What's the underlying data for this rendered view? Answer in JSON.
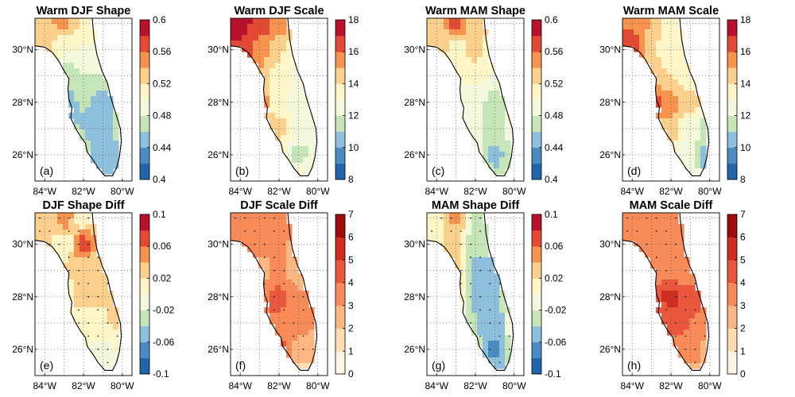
{
  "chart_data": [
    {
      "type": "heatmap",
      "panel_label": "(a)",
      "title": "Warm DJF Shape",
      "x_ticks": [
        "84°W",
        "82°W",
        "80°W"
      ],
      "y_ticks": [
        "30°N",
        "28°N",
        "26°N"
      ],
      "colorbar": {
        "min": 0.4,
        "max": 0.6,
        "ticks": [
          "0.6",
          "0.56",
          "0.52",
          "0.48",
          "0.44",
          "0.4"
        ],
        "palette": "diverging_rdylbu",
        "levels": 10
      },
      "field": {
        "lon": [
          -84,
          -83,
          -82,
          -81,
          -80
        ],
        "lat": [
          31,
          30,
          29,
          28,
          27,
          26,
          25
        ],
        "values": [
          [
            0.54,
            0.55,
            0.52,
            null,
            null
          ],
          [
            0.53,
            0.5,
            0.5,
            0.49,
            null
          ],
          [
            null,
            0.46,
            0.48,
            0.48,
            null
          ],
          [
            null,
            0.45,
            0.46,
            0.45,
            null
          ],
          [
            null,
            null,
            0.46,
            0.45,
            0.47
          ],
          [
            null,
            null,
            0.47,
            0.44,
            0.45
          ],
          [
            null,
            null,
            null,
            0.44,
            null
          ]
        ]
      }
    },
    {
      "type": "heatmap",
      "panel_label": "(b)",
      "title": "Warm DJF Scale",
      "x_ticks": [
        "84°W",
        "82°W",
        "80°W"
      ],
      "y_ticks": [
        "30°N",
        "28°N",
        "26°N"
      ],
      "colorbar": {
        "min": 8,
        "max": 18,
        "ticks": [
          "18",
          "16",
          "14",
          "12",
          "10",
          "8"
        ],
        "palette": "diverging_rdylbu",
        "levels": 10
      },
      "field": {
        "lon": [
          -84,
          -83,
          -82,
          -81,
          -80
        ],
        "lat": [
          31,
          30,
          29,
          28,
          27,
          26,
          25
        ],
        "values": [
          [
            17.5,
            17.0,
            15.5,
            null,
            null
          ],
          [
            17.0,
            15.5,
            14.0,
            13.0,
            null
          ],
          [
            null,
            15.0,
            13.5,
            12.5,
            null
          ],
          [
            null,
            16.0,
            13.0,
            12.5,
            null
          ],
          [
            null,
            null,
            14.5,
            12.0,
            13.0
          ],
          [
            null,
            null,
            14.0,
            11.5,
            12.5
          ],
          [
            null,
            null,
            null,
            13.5,
            null
          ]
        ]
      }
    },
    {
      "type": "heatmap",
      "panel_label": "(c)",
      "title": "Warm MAM Shape",
      "x_ticks": [
        "84°W",
        "82°W",
        "80°W"
      ],
      "y_ticks": [
        "30°N",
        "28°N",
        "26°N"
      ],
      "colorbar": {
        "min": 0.4,
        "max": 0.6,
        "ticks": [
          "0.6",
          "0.56",
          "0.52",
          "0.48",
          "0.44",
          "0.4"
        ],
        "palette": "diverging_rdylbu",
        "levels": 10
      },
      "field": {
        "lon": [
          -84,
          -83,
          -82,
          -81,
          -80
        ],
        "lat": [
          31,
          30,
          29,
          28,
          27,
          26,
          25
        ],
        "values": [
          [
            0.52,
            0.57,
            0.53,
            null,
            null
          ],
          [
            0.53,
            0.51,
            0.53,
            0.5,
            null
          ],
          [
            null,
            0.5,
            0.51,
            0.5,
            null
          ],
          [
            null,
            0.49,
            0.48,
            0.47,
            null
          ],
          [
            null,
            null,
            0.49,
            0.47,
            0.49
          ],
          [
            null,
            null,
            0.5,
            0.45,
            0.48
          ],
          [
            null,
            null,
            null,
            0.47,
            null
          ]
        ]
      }
    },
    {
      "type": "heatmap",
      "panel_label": "(d)",
      "title": "Warm MAM Scale",
      "x_ticks": [
        "84°W",
        "82°W",
        "80°W"
      ],
      "y_ticks": [
        "30°N",
        "28°N",
        "26°N"
      ],
      "colorbar": {
        "min": 8,
        "max": 18,
        "ticks": [
          "18",
          "16",
          "14",
          "12",
          "10",
          "8"
        ],
        "palette": "diverging_rdylbu",
        "levels": 10
      },
      "field": {
        "lon": [
          -84,
          -83,
          -82,
          -81,
          -80
        ],
        "lat": [
          31,
          30,
          29,
          28,
          27,
          26,
          25
        ],
        "values": [
          [
            16.0,
            15.0,
            13.5,
            null,
            null
          ],
          [
            17.0,
            14.0,
            13.0,
            13.5,
            null
          ],
          [
            null,
            14.5,
            14.0,
            13.0,
            null
          ],
          [
            null,
            17.0,
            15.5,
            14.5,
            null
          ],
          [
            null,
            null,
            15.0,
            12.5,
            11.0
          ],
          [
            null,
            null,
            13.0,
            12.0,
            10.0
          ],
          [
            null,
            null,
            null,
            12.5,
            null
          ]
        ]
      }
    },
    {
      "type": "heatmap",
      "panel_label": "(e)",
      "title": "DJF Shape Diff",
      "x_ticks": [
        "84°W",
        "82°W",
        "80°W"
      ],
      "y_ticks": [
        "30°N",
        "28°N",
        "26°N"
      ],
      "colorbar": {
        "min": -0.1,
        "max": 0.1,
        "ticks": [
          "0.1",
          "0.06",
          "0.02",
          "-0.02",
          "-0.06",
          "-0.1"
        ],
        "palette": "diverging_rdylbu",
        "levels": 10
      },
      "field": {
        "lon": [
          -84,
          -83,
          -82,
          -81,
          -80
        ],
        "lat": [
          31,
          30,
          29,
          28,
          27,
          26,
          25
        ],
        "values": [
          [
            0.02,
            0.05,
            0.01,
            null,
            null
          ],
          [
            0.03,
            0.0,
            0.07,
            0.03,
            null
          ],
          [
            null,
            0.02,
            0.03,
            0.03,
            null
          ],
          [
            null,
            0.0,
            0.03,
            0.02,
            null
          ],
          [
            null,
            null,
            0.01,
            0.02,
            0.03
          ],
          [
            null,
            null,
            0.0,
            -0.01,
            0.0
          ],
          [
            null,
            null,
            null,
            0.0,
            null
          ]
        ]
      }
    },
    {
      "type": "heatmap",
      "panel_label": "(f)",
      "title": "DJF Scale Diff",
      "x_ticks": [
        "84°W",
        "82°W",
        "80°W"
      ],
      "y_ticks": [
        "30°N",
        "28°N",
        "26°N"
      ],
      "colorbar": {
        "min": 0,
        "max": 7,
        "ticks": [
          "7",
          "6",
          "5",
          "4",
          "3",
          "2",
          "1",
          "0"
        ],
        "palette": "sequential_orrd",
        "levels": 7
      },
      "field": {
        "lon": [
          -84,
          -83,
          -82,
          -81,
          -80
        ],
        "lat": [
          31,
          30,
          29,
          28,
          27,
          26,
          25
        ],
        "values": [
          [
            3.5,
            4.0,
            3.5,
            null,
            null
          ],
          [
            4.0,
            3.0,
            3.5,
            2.5,
            null
          ],
          [
            null,
            2.5,
            3.0,
            2.5,
            null
          ],
          [
            null,
            4.0,
            4.5,
            3.0,
            null
          ],
          [
            null,
            null,
            4.0,
            3.5,
            3.0
          ],
          [
            null,
            null,
            4.5,
            2.5,
            2.0
          ],
          [
            null,
            null,
            null,
            1.5,
            null
          ]
        ]
      }
    },
    {
      "type": "heatmap",
      "panel_label": "(g)",
      "title": "MAM Shape Diff",
      "x_ticks": [
        "84°W",
        "82°W",
        "80°W"
      ],
      "y_ticks": [
        "30°N",
        "28°N",
        "26°N"
      ],
      "colorbar": {
        "min": -0.1,
        "max": 0.1,
        "ticks": [
          "0.1",
          "0.06",
          "0.02",
          "-0.02",
          "-0.06",
          "-0.1"
        ],
        "palette": "diverging_rdylbu",
        "levels": 10
      },
      "field": {
        "lon": [
          -84,
          -83,
          -82,
          -81,
          -80
        ],
        "lat": [
          31,
          30,
          29,
          28,
          27,
          26,
          25
        ],
        "values": [
          [
            0.0,
            0.05,
            -0.03,
            null,
            null
          ],
          [
            0.02,
            0.03,
            -0.04,
            -0.02,
            null
          ],
          [
            null,
            0.04,
            -0.06,
            -0.05,
            null
          ],
          [
            null,
            0.03,
            -0.05,
            -0.04,
            null
          ],
          [
            null,
            null,
            -0.04,
            -0.06,
            0.01
          ],
          [
            null,
            null,
            -0.03,
            -0.07,
            -0.03
          ],
          [
            null,
            null,
            null,
            -0.04,
            null
          ]
        ]
      }
    },
    {
      "type": "heatmap",
      "panel_label": "(h)",
      "title": "MAM Scale Diff",
      "x_ticks": [
        "84°W",
        "82°W",
        "80°W"
      ],
      "y_ticks": [
        "30°N",
        "28°N",
        "26°N"
      ],
      "colorbar": {
        "min": 0,
        "max": 7,
        "ticks": [
          "7",
          "6",
          "5",
          "4",
          "3",
          "2",
          "1",
          "0"
        ],
        "palette": "sequential_orrd",
        "levels": 7
      },
      "field": {
        "lon": [
          -84,
          -83,
          -82,
          -81,
          -80
        ],
        "lat": [
          31,
          30,
          29,
          28,
          27,
          26,
          25
        ],
        "values": [
          [
            3.5,
            3.5,
            3.0,
            null,
            null
          ],
          [
            4.0,
            3.5,
            3.0,
            3.0,
            null
          ],
          [
            null,
            3.0,
            3.5,
            3.0,
            null
          ],
          [
            null,
            4.5,
            5.5,
            4.5,
            null
          ],
          [
            null,
            null,
            4.5,
            4.0,
            3.5
          ],
          [
            null,
            null,
            3.5,
            4.0,
            2.5
          ],
          [
            null,
            null,
            null,
            2.5,
            null
          ]
        ]
      }
    }
  ],
  "colors": {
    "diverging_rdylbu": [
      "#2166ac",
      "#4a8cc2",
      "#8ec0de",
      "#c7e6b8",
      "#f3f9dc",
      "#fff6c8",
      "#fbd08d",
      "#f7934e",
      "#e34a33",
      "#b9112c"
    ],
    "sequential_orrd": [
      "#fff5e4",
      "#fddcae",
      "#fcb782",
      "#f88b58",
      "#ea573c",
      "#cf2d1f",
      "#9e0c0c"
    ],
    "coast": "#000000",
    "grid": "#555555"
  }
}
